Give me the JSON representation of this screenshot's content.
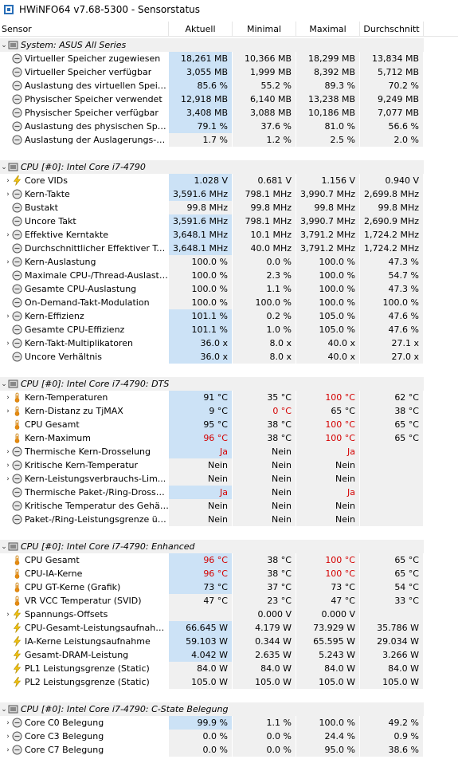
{
  "window": {
    "title": "HWiNFO64 v7.68-5300 - Sensorstatus"
  },
  "columns": [
    "Sensor",
    "Aktuell",
    "Minimal",
    "Maximal",
    "Durchschnitt"
  ],
  "rows": [
    {
      "type": "section",
      "label": "System: ASUS All Series"
    },
    {
      "type": "row",
      "expand": "",
      "icon": "clock",
      "label": "Virtueller Speicher zugewiesen",
      "v": [
        "18,261 MB",
        "10,366 MB",
        "18,299 MB",
        "13,834 MB"
      ],
      "hl": true
    },
    {
      "type": "row",
      "expand": "",
      "icon": "clock",
      "label": "Virtueller Speicher verfügbar",
      "v": [
        "3,055 MB",
        "1,999 MB",
        "8,392 MB",
        "5,712 MB"
      ],
      "hl": true
    },
    {
      "type": "row",
      "expand": "",
      "icon": "clock",
      "label": "Auslastung des virtuellen Speichers",
      "v": [
        "85.6 %",
        "55.2 %",
        "89.3 %",
        "70.2 %"
      ],
      "hl": true
    },
    {
      "type": "row",
      "expand": "",
      "icon": "clock",
      "label": "Physischer Speicher verwendet",
      "v": [
        "12,918 MB",
        "6,140 MB",
        "13,238 MB",
        "9,249 MB"
      ],
      "hl": true
    },
    {
      "type": "row",
      "expand": "",
      "icon": "clock",
      "label": "Physischer Speicher verfügbar",
      "v": [
        "3,408 MB",
        "3,088 MB",
        "10,186 MB",
        "7,077 MB"
      ],
      "hl": true
    },
    {
      "type": "row",
      "expand": "",
      "icon": "clock",
      "label": "Auslastung des physischen Speic...",
      "v": [
        "79.1 %",
        "37.6 %",
        "81.0 %",
        "56.6 %"
      ],
      "hl": true
    },
    {
      "type": "row",
      "expand": "",
      "icon": "clock",
      "label": "Auslastung der Auslagerungs-Datei",
      "v": [
        "1.7 %",
        "1.2 %",
        "2.5 %",
        "2.0 %"
      ],
      "hl": false
    },
    {
      "type": "empty"
    },
    {
      "type": "section",
      "label": "CPU [#0]: Intel Core i7-4790"
    },
    {
      "type": "row",
      "expand": ">",
      "icon": "bolt",
      "label": "Core VIDs",
      "v": [
        "1.028 V",
        "0.681 V",
        "1.156 V",
        "0.940 V"
      ],
      "hl": true
    },
    {
      "type": "row",
      "expand": ">",
      "icon": "clock",
      "label": "Kern-Takte",
      "v": [
        "3,591.6 MHz",
        "798.1 MHz",
        "3,990.7 MHz",
        "2,699.8 MHz"
      ],
      "hl": true
    },
    {
      "type": "row",
      "expand": "",
      "icon": "clock",
      "label": "Bustakt",
      "v": [
        "99.8 MHz",
        "99.8 MHz",
        "99.8 MHz",
        "99.8 MHz"
      ],
      "hl": false
    },
    {
      "type": "row",
      "expand": "",
      "icon": "clock",
      "label": "Uncore Takt",
      "v": [
        "3,591.6 MHz",
        "798.1 MHz",
        "3,990.7 MHz",
        "2,690.9 MHz"
      ],
      "hl": true
    },
    {
      "type": "row",
      "expand": ">",
      "icon": "clock",
      "label": "Effektive Kerntakte",
      "v": [
        "3,648.1 MHz",
        "10.1 MHz",
        "3,791.2 MHz",
        "1,724.2 MHz"
      ],
      "hl": true
    },
    {
      "type": "row",
      "expand": "",
      "icon": "clock",
      "label": "Durchschnittlicher Effektiver Takt",
      "v": [
        "3,648.1 MHz",
        "40.0 MHz",
        "3,791.2 MHz",
        "1,724.2 MHz"
      ],
      "hl": true
    },
    {
      "type": "row",
      "expand": ">",
      "icon": "clock",
      "label": "Kern-Auslastung",
      "v": [
        "100.0 %",
        "0.0 %",
        "100.0 %",
        "47.3 %"
      ],
      "hl": false
    },
    {
      "type": "row",
      "expand": "",
      "icon": "clock",
      "label": "Maximale CPU-/Thread-Auslastung",
      "v": [
        "100.0 %",
        "2.3 %",
        "100.0 %",
        "54.7 %"
      ],
      "hl": false
    },
    {
      "type": "row",
      "expand": "",
      "icon": "clock",
      "label": "Gesamte CPU-Auslastung",
      "v": [
        "100.0 %",
        "1.1 %",
        "100.0 %",
        "47.3 %"
      ],
      "hl": false
    },
    {
      "type": "row",
      "expand": "",
      "icon": "clock",
      "label": "On-Demand-Takt-Modulation",
      "v": [
        "100.0 %",
        "100.0 %",
        "100.0 %",
        "100.0 %"
      ],
      "hl": false
    },
    {
      "type": "row",
      "expand": ">",
      "icon": "clock",
      "label": "Kern-Effizienz",
      "v": [
        "101.1 %",
        "0.2 %",
        "105.0 %",
        "47.6 %"
      ],
      "hl": true
    },
    {
      "type": "row",
      "expand": "",
      "icon": "clock",
      "label": "Gesamte CPU-Effizienz",
      "v": [
        "101.1 %",
        "1.0 %",
        "105.0 %",
        "47.6 %"
      ],
      "hl": true
    },
    {
      "type": "row",
      "expand": ">",
      "icon": "clock",
      "label": "Kern-Takt-Multiplikatoren",
      "v": [
        "36.0 x",
        "8.0 x",
        "40.0 x",
        "27.1 x"
      ],
      "hl": true
    },
    {
      "type": "row",
      "expand": "",
      "icon": "clock",
      "label": "Uncore Verhältnis",
      "v": [
        "36.0 x",
        "8.0 x",
        "40.0 x",
        "27.0 x"
      ],
      "hl": true
    },
    {
      "type": "empty"
    },
    {
      "type": "section",
      "label": "CPU [#0]: Intel Core i7-4790: DTS"
    },
    {
      "type": "row",
      "expand": ">",
      "icon": "thermo",
      "label": "Kern-Temperaturen",
      "v": [
        "91 °C",
        "35 °C",
        "100 °C",
        "62 °C"
      ],
      "hl": true,
      "red": [
        false,
        false,
        true,
        false
      ]
    },
    {
      "type": "row",
      "expand": ">",
      "icon": "thermo",
      "label": "Kern-Distanz zu TjMAX",
      "v": [
        "9 °C",
        "0 °C",
        "65 °C",
        "38 °C"
      ],
      "hl": true,
      "red": [
        false,
        true,
        false,
        false
      ]
    },
    {
      "type": "row",
      "expand": "",
      "icon": "thermo",
      "label": "CPU Gesamt",
      "v": [
        "95 °C",
        "38 °C",
        "100 °C",
        "65 °C"
      ],
      "hl": true,
      "red": [
        false,
        false,
        true,
        false
      ]
    },
    {
      "type": "row",
      "expand": "",
      "icon": "thermo",
      "label": "Kern-Maximum",
      "v": [
        "96 °C",
        "38 °C",
        "100 °C",
        "65 °C"
      ],
      "hl": true,
      "red": [
        true,
        false,
        true,
        false
      ]
    },
    {
      "type": "row",
      "expand": ">",
      "icon": "clock",
      "label": "Thermische Kern-Drosselung",
      "v": [
        "Ja",
        "Nein",
        "Ja",
        ""
      ],
      "hl": true,
      "red": [
        true,
        false,
        true,
        false
      ]
    },
    {
      "type": "row",
      "expand": ">",
      "icon": "clock",
      "label": "Kritische Kern-Temperatur",
      "v": [
        "Nein",
        "Nein",
        "Nein",
        ""
      ],
      "hl": false
    },
    {
      "type": "row",
      "expand": ">",
      "icon": "clock",
      "label": "Kern-Leistungsverbrauchs-Lim...",
      "v": [
        "Nein",
        "Nein",
        "Nein",
        ""
      ],
      "hl": false
    },
    {
      "type": "row",
      "expand": "",
      "icon": "clock",
      "label": "Thermische Paket-/Ring-Drosselung",
      "v": [
        "Ja",
        "Nein",
        "Ja",
        ""
      ],
      "hl": true,
      "red": [
        true,
        false,
        true,
        false
      ]
    },
    {
      "type": "row",
      "expand": "",
      "icon": "clock",
      "label": "Kritische Temperatur des Gehäus...",
      "v": [
        "Nein",
        "Nein",
        "Nein",
        ""
      ],
      "hl": false
    },
    {
      "type": "row",
      "expand": "",
      "icon": "clock",
      "label": "Paket-/Ring-Leistungsgrenze übe...",
      "v": [
        "Nein",
        "Nein",
        "Nein",
        ""
      ],
      "hl": false
    },
    {
      "type": "empty"
    },
    {
      "type": "section",
      "label": "CPU [#0]: Intel Core i7-4790: Enhanced"
    },
    {
      "type": "row",
      "expand": "",
      "icon": "thermo",
      "label": "CPU Gesamt",
      "v": [
        "96 °C",
        "38 °C",
        "100 °C",
        "65 °C"
      ],
      "hl": true,
      "red": [
        true,
        false,
        true,
        false
      ]
    },
    {
      "type": "row",
      "expand": "",
      "icon": "thermo",
      "label": "CPU-IA-Kerne",
      "v": [
        "96 °C",
        "38 °C",
        "100 °C",
        "65 °C"
      ],
      "hl": true,
      "red": [
        true,
        false,
        true,
        false
      ]
    },
    {
      "type": "row",
      "expand": "",
      "icon": "thermo",
      "label": "CPU GT-Kerne (Grafik)",
      "v": [
        "73 °C",
        "37 °C",
        "73 °C",
        "54 °C"
      ],
      "hl": true
    },
    {
      "type": "row",
      "expand": "",
      "icon": "thermo",
      "label": "VR VCC Temperatur (SVID)",
      "v": [
        "47 °C",
        "23 °C",
        "47 °C",
        "33 °C"
      ],
      "hl": false
    },
    {
      "type": "row",
      "expand": ">",
      "icon": "bolt",
      "label": "Spannungs-Offsets",
      "v": [
        "",
        "0.000 V",
        "0.000 V",
        ""
      ],
      "hl": false
    },
    {
      "type": "row",
      "expand": "",
      "icon": "bolt",
      "label": "CPU-Gesamt-Leistungsaufnahme",
      "v": [
        "66.645 W",
        "4.179 W",
        "73.929 W",
        "35.786 W"
      ],
      "hl": true
    },
    {
      "type": "row",
      "expand": "",
      "icon": "bolt",
      "label": "IA-Kerne Leistungsaufnahme",
      "v": [
        "59.103 W",
        "0.344 W",
        "65.595 W",
        "29.034 W"
      ],
      "hl": true
    },
    {
      "type": "row",
      "expand": "",
      "icon": "bolt",
      "label": "Gesamt-DRAM-Leistung",
      "v": [
        "4.042 W",
        "2.635 W",
        "5.243 W",
        "3.266 W"
      ],
      "hl": true
    },
    {
      "type": "row",
      "expand": "",
      "icon": "bolt",
      "label": "PL1 Leistungsgrenze (Static)",
      "v": [
        "84.0 W",
        "84.0 W",
        "84.0 W",
        "84.0 W"
      ],
      "hl": false
    },
    {
      "type": "row",
      "expand": "",
      "icon": "bolt",
      "label": "PL2 Leistungsgrenze (Static)",
      "v": [
        "105.0 W",
        "105.0 W",
        "105.0 W",
        "105.0 W"
      ],
      "hl": false
    },
    {
      "type": "empty"
    },
    {
      "type": "section",
      "label": "CPU [#0]: Intel Core i7-4790: C-State Belegung"
    },
    {
      "type": "row",
      "expand": ">",
      "icon": "clock",
      "label": "Core C0 Belegung",
      "v": [
        "99.9 %",
        "1.1 %",
        "100.0 %",
        "49.2 %"
      ],
      "hl": true
    },
    {
      "type": "row",
      "expand": ">",
      "icon": "clock",
      "label": "Core C3 Belegung",
      "v": [
        "0.0 %",
        "0.0 %",
        "24.4 %",
        "0.9 %"
      ],
      "hl": false
    },
    {
      "type": "row",
      "expand": ">",
      "icon": "clock",
      "label": "Core C7 Belegung",
      "v": [
        "0.0 %",
        "0.0 %",
        "95.0 %",
        "38.6 %"
      ],
      "hl": false
    }
  ]
}
